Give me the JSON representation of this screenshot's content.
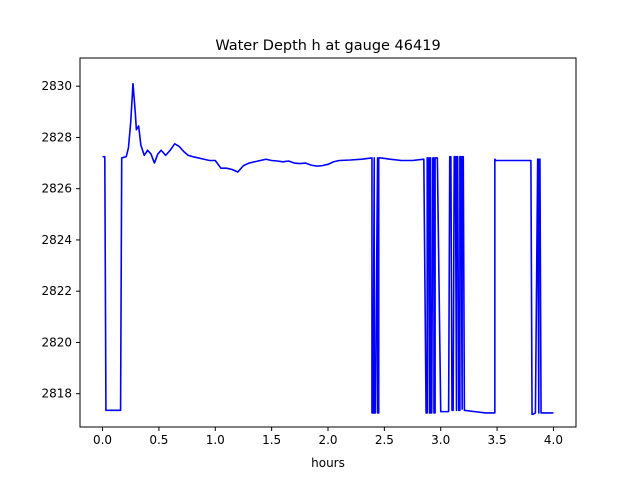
{
  "chart_data": {
    "type": "line",
    "title": "Water Depth h at gauge 46419",
    "xlabel": "hours",
    "ylabel": "",
    "xlim": [
      -0.2,
      4.2
    ],
    "ylim": [
      2816.7,
      2831.1
    ],
    "xticks": [
      0.0,
      0.5,
      1.0,
      1.5,
      2.0,
      2.5,
      3.0,
      3.5,
      4.0
    ],
    "xtick_labels": [
      "0.0",
      "0.5",
      "1.0",
      "1.5",
      "2.0",
      "2.5",
      "3.0",
      "3.5",
      "4.0"
    ],
    "yticks": [
      2818,
      2820,
      2822,
      2824,
      2826,
      2828,
      2830
    ],
    "ytick_labels": [
      "2818",
      "2820",
      "2822",
      "2824",
      "2826",
      "2828",
      "2830"
    ],
    "grid": false,
    "series": [
      {
        "color": "#0000ff",
        "x": [
          0.0,
          0.02,
          0.03,
          0.1,
          0.16,
          0.17,
          0.21,
          0.23,
          0.25,
          0.27,
          0.29,
          0.3,
          0.32,
          0.34,
          0.37,
          0.4,
          0.43,
          0.46,
          0.49,
          0.52,
          0.56,
          0.6,
          0.64,
          0.68,
          0.72,
          0.76,
          0.8,
          0.85,
          0.9,
          0.95,
          1.0,
          1.05,
          1.1,
          1.15,
          1.2,
          1.25,
          1.3,
          1.35,
          1.4,
          1.45,
          1.5,
          1.55,
          1.6,
          1.65,
          1.7,
          1.75,
          1.8,
          1.85,
          1.9,
          1.95,
          2.0,
          2.05,
          2.1,
          2.2,
          2.3,
          2.39,
          2.39,
          2.4,
          2.41,
          2.41,
          2.42,
          2.44,
          2.44,
          2.45,
          2.45,
          2.47,
          2.55,
          2.65,
          2.75,
          2.85,
          2.87,
          2.88,
          2.88,
          2.89,
          2.9,
          2.9,
          2.91,
          2.91,
          2.92,
          2.93,
          2.94,
          2.94,
          2.95,
          2.95,
          2.96,
          2.97,
          3.0,
          3.07,
          3.08,
          3.09,
          3.1,
          3.11,
          3.12,
          3.13,
          3.14,
          3.14,
          3.15,
          3.16,
          3.17,
          3.17,
          3.18,
          3.19,
          3.19,
          3.2,
          3.21,
          3.3,
          3.4,
          3.48,
          3.48,
          3.49,
          3.6,
          3.7,
          3.8,
          3.81,
          3.82,
          3.84,
          3.86,
          3.86,
          3.87,
          3.87,
          3.88,
          3.89,
          3.95,
          4.0
        ],
        "y": [
          2827.25,
          2827.25,
          2817.35,
          2817.35,
          2817.35,
          2827.2,
          2827.25,
          2827.6,
          2828.6,
          2830.1,
          2829.0,
          2828.3,
          2828.45,
          2827.7,
          2827.3,
          2827.5,
          2827.35,
          2827.0,
          2827.35,
          2827.5,
          2827.3,
          2827.5,
          2827.75,
          2827.65,
          2827.45,
          2827.3,
          2827.25,
          2827.2,
          2827.15,
          2827.1,
          2827.1,
          2826.8,
          2826.8,
          2826.75,
          2826.65,
          2826.9,
          2827.0,
          2827.05,
          2827.1,
          2827.15,
          2827.1,
          2827.08,
          2827.05,
          2827.08,
          2827.0,
          2826.98,
          2827.0,
          2826.92,
          2826.88,
          2826.9,
          2826.95,
          2827.05,
          2827.1,
          2827.12,
          2827.15,
          2827.2,
          2817.25,
          2817.25,
          2827.2,
          2817.25,
          2817.25,
          2827.2,
          2817.25,
          2817.25,
          2827.2,
          2827.2,
          2827.15,
          2827.1,
          2827.1,
          2827.15,
          2817.25,
          2817.25,
          2827.2,
          2827.2,
          2817.25,
          2827.2,
          2827.2,
          2817.25,
          2817.25,
          2827.2,
          2827.2,
          2817.25,
          2817.25,
          2827.2,
          2827.2,
          2827.2,
          2817.3,
          2817.3,
          2827.25,
          2827.25,
          2817.35,
          2817.35,
          2827.25,
          2827.25,
          2817.35,
          2827.25,
          2827.25,
          2817.35,
          2817.35,
          2827.25,
          2827.25,
          2817.4,
          2827.25,
          2827.25,
          2817.35,
          2817.3,
          2817.25,
          2817.25,
          2827.15,
          2827.1,
          2827.1,
          2827.1,
          2827.1,
          2817.2,
          2817.2,
          2817.25,
          2827.15,
          2827.15,
          2817.25,
          2827.15,
          2827.15,
          2817.25,
          2817.25,
          2817.25
        ]
      }
    ]
  }
}
